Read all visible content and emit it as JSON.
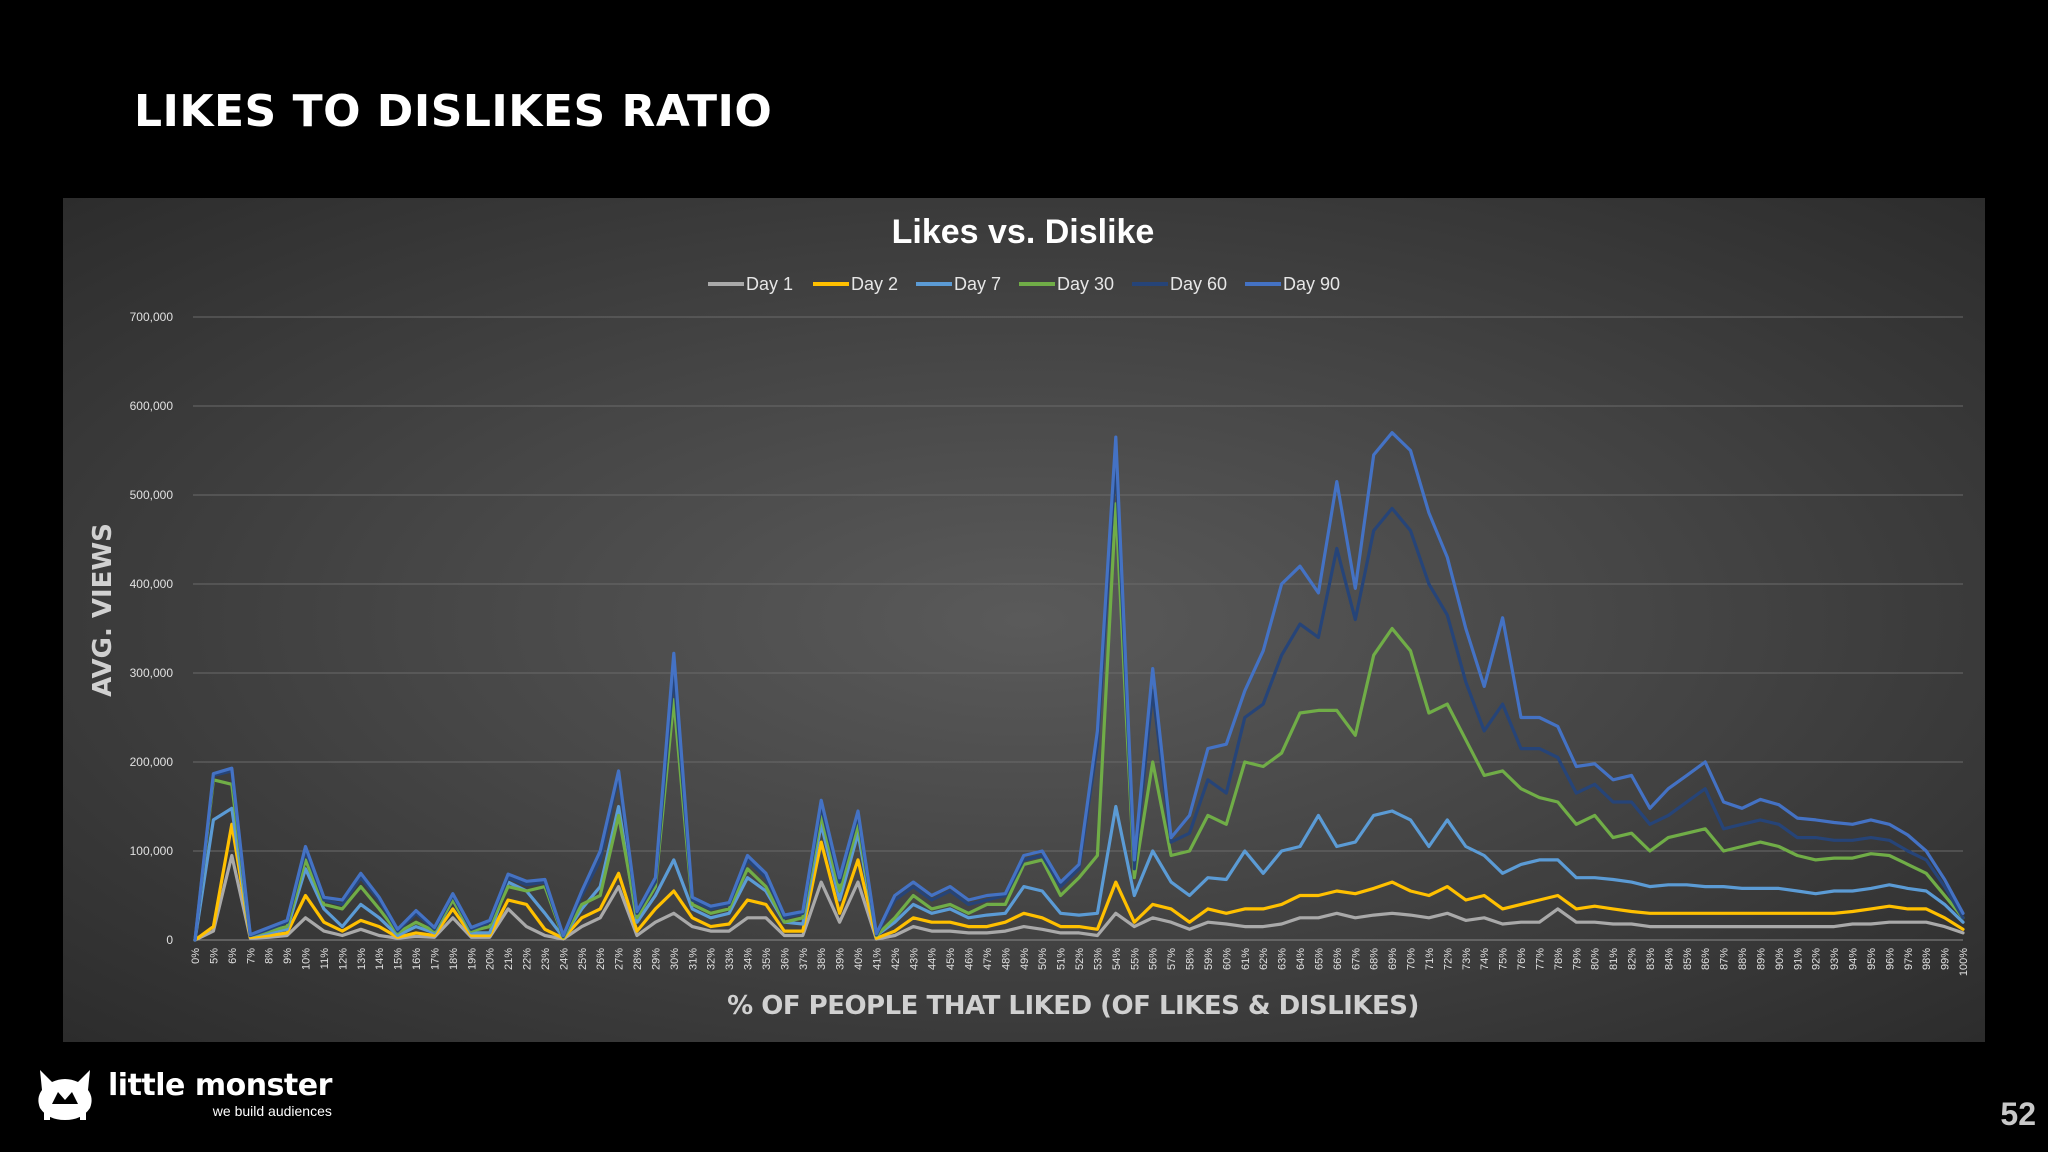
{
  "slide": {
    "title": "LIKES TO DISLIKES RATIO",
    "page_number": "52"
  },
  "brand": {
    "name": "little monster",
    "tagline": "we build audiences"
  },
  "chart_data": {
    "type": "line",
    "title": "Likes vs. Dislike",
    "xlabel": "% OF PEOPLE THAT LIKED (OF LIKES & DISLIKES)",
    "ylabel": "AVG. VIEWS",
    "ylim": [
      0,
      700000
    ],
    "yticks": [
      "0",
      "100,000",
      "200,000",
      "300,000",
      "400,000",
      "500,000",
      "600,000",
      "700,000"
    ],
    "grid": true,
    "legend_position": "top",
    "categories": [
      "0%",
      "5%",
      "6%",
      "7%",
      "8%",
      "9%",
      "10%",
      "11%",
      "12%",
      "13%",
      "14%",
      "15%",
      "16%",
      "17%",
      "18%",
      "19%",
      "20%",
      "21%",
      "22%",
      "23%",
      "24%",
      "25%",
      "26%",
      "27%",
      "28%",
      "29%",
      "30%",
      "31%",
      "32%",
      "33%",
      "34%",
      "35%",
      "36%",
      "37%",
      "38%",
      "39%",
      "40%",
      "41%",
      "42%",
      "43%",
      "44%",
      "45%",
      "46%",
      "47%",
      "48%",
      "49%",
      "50%",
      "51%",
      "52%",
      "53%",
      "54%",
      "55%",
      "56%",
      "57%",
      "58%",
      "59%",
      "60%",
      "61%",
      "62%",
      "63%",
      "64%",
      "65%",
      "66%",
      "67%",
      "68%",
      "69%",
      "70%",
      "71%",
      "72%",
      "73%",
      "74%",
      "75%",
      "76%",
      "77%",
      "78%",
      "79%",
      "80%",
      "81%",
      "82%",
      "83%",
      "84%",
      "85%",
      "86%",
      "87%",
      "88%",
      "89%",
      "90%",
      "91%",
      "92%",
      "93%",
      "94%",
      "95%",
      "96%",
      "97%",
      "98%",
      "99%",
      "100%"
    ],
    "series": [
      {
        "name": "Day 1",
        "color": "#a9a9a9",
        "values": [
          0,
          10000,
          95000,
          2000,
          3000,
          5000,
          25000,
          10000,
          5000,
          12000,
          5000,
          2000,
          4000,
          3000,
          25000,
          3000,
          3000,
          35000,
          15000,
          5000,
          1000,
          15000,
          25000,
          60000,
          5000,
          20000,
          30000,
          15000,
          10000,
          10000,
          25000,
          25000,
          5000,
          5000,
          65000,
          20000,
          65000,
          1000,
          5000,
          15000,
          10000,
          10000,
          8000,
          8000,
          10000,
          15000,
          12000,
          8000,
          8000,
          5000,
          30000,
          15000,
          25000,
          20000,
          12000,
          20000,
          18000,
          15000,
          15000,
          18000,
          25000,
          25000,
          30000,
          25000,
          28000,
          30000,
          28000,
          25000,
          30000,
          22000,
          25000,
          18000,
          20000,
          20000,
          35000,
          20000,
          20000,
          18000,
          18000,
          15000,
          15000,
          15000,
          15000,
          15000,
          15000,
          15000,
          15000,
          15000,
          15000,
          15000,
          18000,
          18000,
          20000,
          20000,
          20000,
          15000,
          8000
        ]
      },
      {
        "name": "Day 2",
        "color": "#ffc000",
        "values": [
          0,
          15000,
          130000,
          3000,
          5000,
          8000,
          50000,
          20000,
          10000,
          22000,
          15000,
          3000,
          8000,
          5000,
          35000,
          5000,
          5000,
          45000,
          40000,
          12000,
          2000,
          25000,
          35000,
          75000,
          10000,
          35000,
          55000,
          25000,
          15000,
          18000,
          45000,
          40000,
          10000,
          10000,
          110000,
          30000,
          90000,
          2000,
          10000,
          25000,
          20000,
          20000,
          15000,
          15000,
          20000,
          30000,
          25000,
          15000,
          15000,
          12000,
          65000,
          20000,
          40000,
          35000,
          20000,
          35000,
          30000,
          35000,
          35000,
          40000,
          50000,
          50000,
          55000,
          52000,
          58000,
          65000,
          55000,
          50000,
          60000,
          45000,
          50000,
          35000,
          40000,
          45000,
          50000,
          35000,
          38000,
          35000,
          32000,
          30000,
          30000,
          30000,
          30000,
          30000,
          30000,
          30000,
          30000,
          30000,
          30000,
          30000,
          32000,
          35000,
          38000,
          35000,
          35000,
          25000,
          12000
        ]
      },
      {
        "name": "Day 7",
        "color": "#5b9bd5",
        "values": [
          0,
          135000,
          148000,
          5000,
          8000,
          12000,
          80000,
          35000,
          15000,
          40000,
          25000,
          5000,
          15000,
          8000,
          45000,
          8000,
          8000,
          65000,
          55000,
          30000,
          3000,
          35000,
          60000,
          150000,
          20000,
          50000,
          90000,
          35000,
          25000,
          30000,
          70000,
          55000,
          20000,
          18000,
          130000,
          45000,
          120000,
          5000,
          20000,
          40000,
          30000,
          35000,
          25000,
          28000,
          30000,
          60000,
          55000,
          30000,
          28000,
          30000,
          150000,
          50000,
          100000,
          65000,
          50000,
          70000,
          68000,
          100000,
          75000,
          100000,
          105000,
          140000,
          105000,
          110000,
          140000,
          145000,
          135000,
          105000,
          135000,
          105000,
          95000,
          75000,
          85000,
          90000,
          90000,
          70000,
          70000,
          68000,
          65000,
          60000,
          62000,
          62000,
          60000,
          60000,
          58000,
          58000,
          58000,
          55000,
          52000,
          55000,
          55000,
          58000,
          62000,
          58000,
          55000,
          40000,
          20000
        ]
      },
      {
        "name": "Day 30",
        "color": "#70ad47",
        "values": [
          0,
          180000,
          175000,
          5000,
          10000,
          15000,
          90000,
          40000,
          35000,
          60000,
          35000,
          8000,
          20000,
          10000,
          45000,
          10000,
          15000,
          60000,
          55000,
          60000,
          3000,
          40000,
          50000,
          140000,
          25000,
          60000,
          270000,
          40000,
          30000,
          35000,
          80000,
          60000,
          20000,
          25000,
          140000,
          55000,
          130000,
          5000,
          25000,
          50000,
          35000,
          40000,
          30000,
          40000,
          40000,
          85000,
          90000,
          50000,
          70000,
          95000,
          490000,
          70000,
          200000,
          95000,
          100000,
          140000,
          130000,
          200000,
          195000,
          210000,
          255000,
          258000,
          258000,
          230000,
          320000,
          350000,
          325000,
          255000,
          265000,
          225000,
          185000,
          190000,
          170000,
          160000,
          155000,
          130000,
          140000,
          115000,
          120000,
          100000,
          115000,
          120000,
          125000,
          100000,
          105000,
          110000,
          105000,
          95000,
          90000,
          92000,
          92000,
          97000,
          95000,
          85000,
          75000,
          50000,
          25000
        ]
      },
      {
        "name": "Day 60",
        "color": "#264478",
        "values": [
          0,
          185000,
          190000,
          5000,
          12000,
          20000,
          100000,
          45000,
          40000,
          70000,
          45000,
          10000,
          30000,
          12000,
          50000,
          12000,
          20000,
          70000,
          62000,
          65000,
          4000,
          50000,
          90000,
          185000,
          30000,
          65000,
          300000,
          45000,
          35000,
          40000,
          90000,
          70000,
          25000,
          30000,
          150000,
          65000,
          140000,
          6000,
          45000,
          60000,
          45000,
          55000,
          40000,
          45000,
          50000,
          90000,
          95000,
          60000,
          80000,
          220000,
          540000,
          80000,
          280000,
          110000,
          120000,
          180000,
          165000,
          250000,
          265000,
          320000,
          355000,
          340000,
          440000,
          360000,
          460000,
          485000,
          460000,
          400000,
          365000,
          290000,
          235000,
          265000,
          215000,
          215000,
          205000,
          165000,
          175000,
          155000,
          155000,
          130000,
          140000,
          155000,
          170000,
          125000,
          130000,
          135000,
          130000,
          115000,
          115000,
          112000,
          112000,
          115000,
          112000,
          100000,
          90000,
          60000,
          25000
        ]
      },
      {
        "name": "Day 90",
        "color": "#4472c4",
        "values": [
          0,
          187000,
          193000,
          6000,
          14000,
          22000,
          105000,
          48000,
          45000,
          75000,
          48000,
          12000,
          33000,
          14000,
          52000,
          14000,
          22000,
          74000,
          66000,
          68000,
          5000,
          55000,
          100000,
          190000,
          32000,
          70000,
          322000,
          48000,
          38000,
          42000,
          95000,
          75000,
          28000,
          32000,
          157000,
          70000,
          145000,
          7000,
          50000,
          65000,
          50000,
          60000,
          45000,
          50000,
          52000,
          95000,
          100000,
          65000,
          85000,
          235000,
          565000,
          90000,
          305000,
          115000,
          140000,
          215000,
          220000,
          280000,
          325000,
          400000,
          420000,
          390000,
          515000,
          395000,
          545000,
          570000,
          550000,
          480000,
          430000,
          350000,
          285000,
          362000,
          250000,
          250000,
          240000,
          195000,
          198000,
          180000,
          185000,
          148000,
          170000,
          185000,
          200000,
          155000,
          148000,
          158000,
          152000,
          137000,
          135000,
          132000,
          130000,
          135000,
          130000,
          118000,
          100000,
          68000,
          30000
        ]
      }
    ]
  }
}
